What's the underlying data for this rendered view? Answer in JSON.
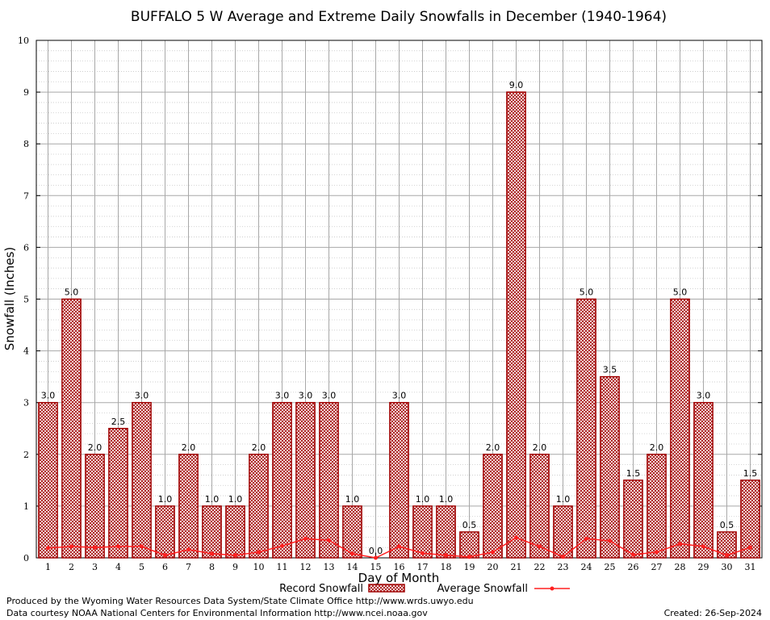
{
  "chart_data": {
    "type": "bar",
    "title": "BUFFALO 5 W Average and Extreme Daily Snowfalls in December (1940-1964)",
    "xlabel": "Day of Month",
    "ylabel": "Snowfall (Inches)",
    "ylim": [
      0,
      10
    ],
    "yticks": [
      "0",
      "1",
      "2",
      "3",
      "4",
      "5",
      "6",
      "7",
      "8",
      "9",
      "10"
    ],
    "grid": true,
    "categories": [
      "1",
      "2",
      "3",
      "4",
      "5",
      "6",
      "7",
      "8",
      "9",
      "10",
      "11",
      "12",
      "13",
      "14",
      "15",
      "16",
      "17",
      "18",
      "19",
      "20",
      "21",
      "22",
      "23",
      "24",
      "25",
      "26",
      "27",
      "28",
      "29",
      "30",
      "31"
    ],
    "series": [
      {
        "name": "Record Snowfall",
        "type": "bar",
        "values": [
          3.0,
          5.0,
          2.0,
          2.5,
          3.0,
          1.0,
          2.0,
          1.0,
          1.0,
          2.0,
          3.0,
          3.0,
          3.0,
          1.0,
          0.0,
          3.0,
          1.0,
          1.0,
          0.5,
          2.0,
          9.0,
          2.0,
          1.0,
          5.0,
          3.5,
          1.5,
          2.0,
          5.0,
          3.0,
          0.5,
          1.5
        ],
        "labels": [
          "3.0",
          "5.0",
          "2.0",
          "2.5",
          "3.0",
          "1.0",
          "2.0",
          "1.0",
          "1.0",
          "2.0",
          "3.0",
          "3.0",
          "3.0",
          "1.0",
          "0.0",
          "3.0",
          "1.0",
          "1.0",
          "0.5",
          "2.0",
          "9.0",
          "2.0",
          "1.0",
          "5.0",
          "3.5",
          "1.5",
          "2.0",
          "5.0",
          "3.0",
          "0.5",
          "1.5"
        ],
        "color": "#a00000"
      },
      {
        "name": "Average Snowfall",
        "type": "line",
        "values": [
          0.19,
          0.22,
          0.2,
          0.22,
          0.22,
          0.05,
          0.16,
          0.08,
          0.05,
          0.11,
          0.23,
          0.37,
          0.34,
          0.08,
          0.0,
          0.22,
          0.09,
          0.05,
          0.02,
          0.11,
          0.39,
          0.22,
          0.02,
          0.37,
          0.33,
          0.06,
          0.11,
          0.27,
          0.22,
          0.05,
          0.2
        ],
        "color": "#ff2020"
      }
    ],
    "legend": "bottom"
  },
  "footer": {
    "line1": "Produced by the Wyoming Water Resources Data System/State Climate Office http://www.wrds.uwyo.edu",
    "line2": "Data courtesy NOAA National Centers for Environmental Information http://www.ncei.noaa.gov",
    "created": "Created: 26-Sep-2024"
  }
}
